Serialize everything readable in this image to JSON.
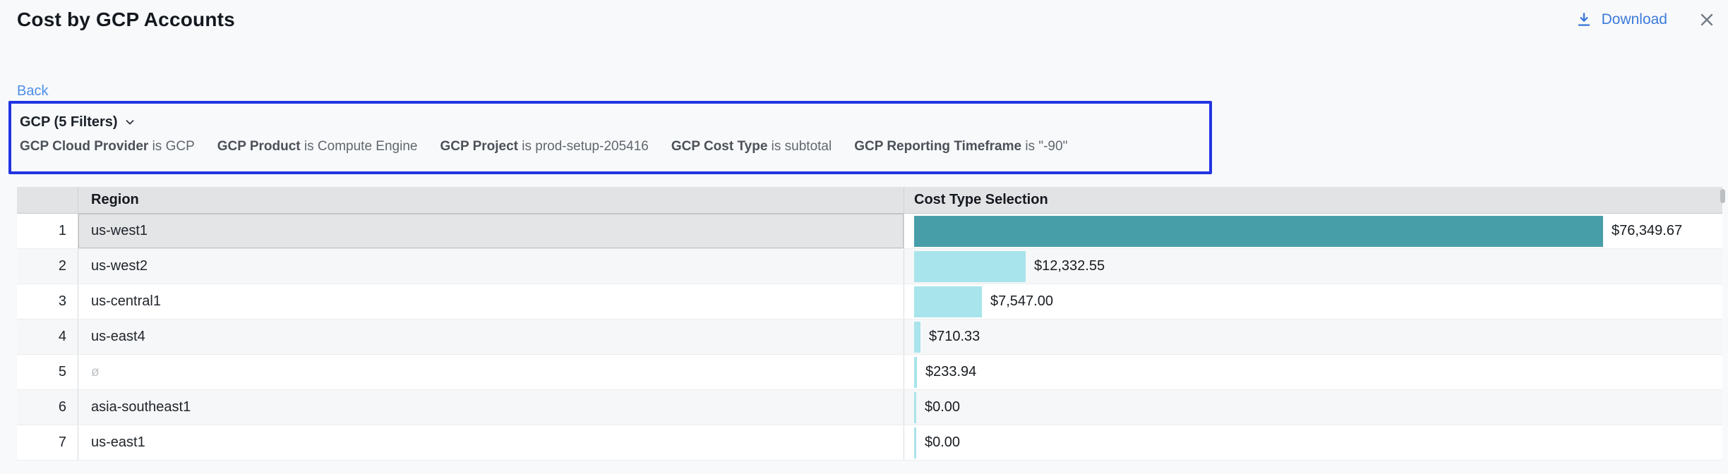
{
  "header": {
    "title": "Cost by GCP Accounts",
    "download_label": "Download"
  },
  "toolbar": {
    "back_label": "Back"
  },
  "filter_panel": {
    "summary_label": "GCP (5 Filters)",
    "items": [
      {
        "name": "GCP Cloud Provider",
        "condition": "is GCP"
      },
      {
        "name": "GCP Product",
        "condition": "is Compute Engine"
      },
      {
        "name": "GCP Project",
        "condition": "is prod-setup-205416"
      },
      {
        "name": "GCP Cost Type",
        "condition": "is subtotal"
      },
      {
        "name": "GCP Reporting Timeframe",
        "condition": "is \"-90\""
      }
    ]
  },
  "table": {
    "columns": {
      "region": "Region",
      "cost": "Cost Type Selection"
    },
    "rows": [
      {
        "num": "1",
        "region": "us-west1",
        "region_empty": false,
        "value": 76349.67,
        "cost_label": "$76,349.67",
        "selected": true
      },
      {
        "num": "2",
        "region": "us-west2",
        "region_empty": false,
        "value": 12332.55,
        "cost_label": "$12,332.55",
        "selected": false
      },
      {
        "num": "3",
        "region": "us-central1",
        "region_empty": false,
        "value": 7547.0,
        "cost_label": "$7,547.00",
        "selected": false
      },
      {
        "num": "4",
        "region": "us-east4",
        "region_empty": false,
        "value": 710.33,
        "cost_label": "$710.33",
        "selected": false
      },
      {
        "num": "5",
        "region": "ø",
        "region_empty": true,
        "value": 233.94,
        "cost_label": "$233.94",
        "selected": false
      },
      {
        "num": "6",
        "region": "asia-southeast1",
        "region_empty": false,
        "value": 0,
        "cost_label": "$0.00",
        "selected": false
      },
      {
        "num": "7",
        "region": "us-east1",
        "region_empty": false,
        "value": 0,
        "cost_label": "$0.00",
        "selected": false
      }
    ]
  },
  "chart_data": {
    "type": "bar",
    "orientation": "horizontal",
    "title": "Cost by GCP Accounts",
    "categories": [
      "us-west1",
      "us-west2",
      "us-central1",
      "us-east4",
      "ø",
      "asia-southeast1",
      "us-east1"
    ],
    "values": [
      76349.67,
      12332.55,
      7547.0,
      710.33,
      233.94,
      0.0,
      0.0
    ],
    "data_labels": [
      "$76,349.67",
      "$12,332.55",
      "$7,547.00",
      "$710.33",
      "$233.94",
      "$0.00",
      "$0.00"
    ],
    "xlabel": "Cost Type Selection",
    "ylabel": "Region",
    "max_value": 76349.67
  },
  "colors": {
    "accent_blue": "#2134e2",
    "link_blue": "#4d8fe6",
    "download_blue": "#3c7bda",
    "bar_selected": "#489ea8",
    "bar_default": "#a8e4ec",
    "selected_row_bg": "#e4e5e7"
  }
}
